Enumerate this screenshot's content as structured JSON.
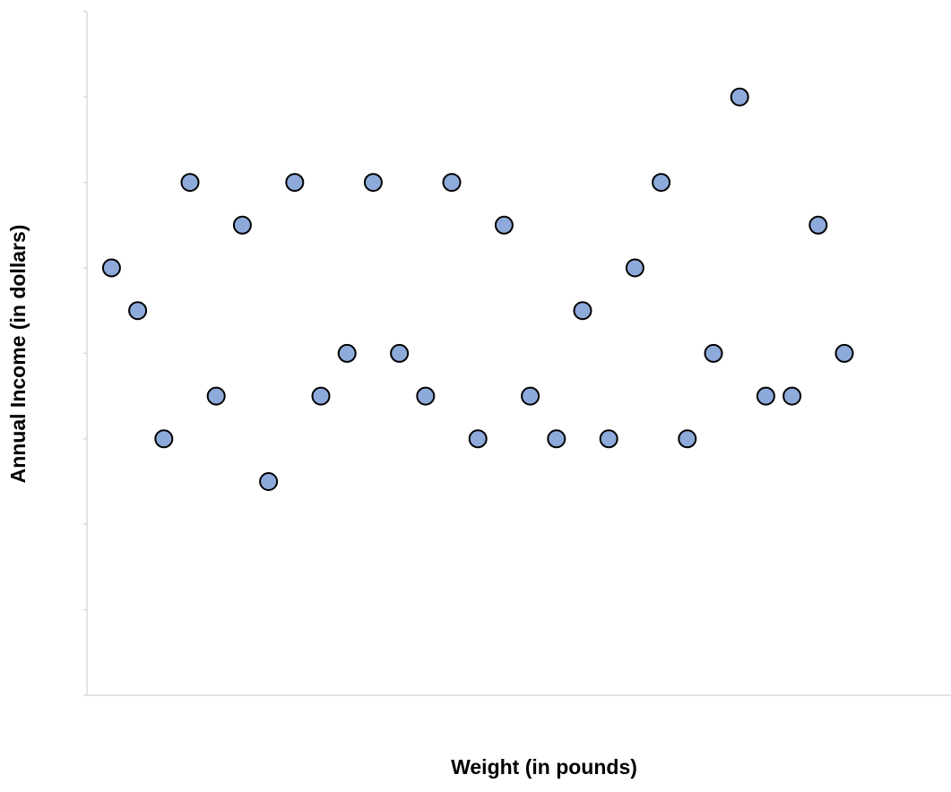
{
  "chart_data": {
    "type": "scatter",
    "title": "",
    "xlabel": "Weight (in pounds)",
    "ylabel": "Annual Income (in dollars)",
    "x_tick_labels_shown": false,
    "y_tick_labels_shown": false,
    "grid": false,
    "legend": false,
    "xlim": [
      0,
      33
    ],
    "ylim": [
      0,
      8
    ],
    "marker_color": "#8eaadb",
    "marker_edge_color": "#000000",
    "series": [
      {
        "points": [
          {
            "x": 1,
            "y": 5
          },
          {
            "x": 2,
            "y": 4.5
          },
          {
            "x": 3,
            "y": 3
          },
          {
            "x": 4,
            "y": 6
          },
          {
            "x": 5,
            "y": 3.5
          },
          {
            "x": 6,
            "y": 5.5
          },
          {
            "x": 7,
            "y": 2.5
          },
          {
            "x": 8,
            "y": 6
          },
          {
            "x": 9,
            "y": 3.5
          },
          {
            "x": 10,
            "y": 4
          },
          {
            "x": 11,
            "y": 6
          },
          {
            "x": 12,
            "y": 4
          },
          {
            "x": 13,
            "y": 3.5
          },
          {
            "x": 14,
            "y": 6
          },
          {
            "x": 15,
            "y": 3
          },
          {
            "x": 16,
            "y": 5.5
          },
          {
            "x": 17,
            "y": 3.5
          },
          {
            "x": 18,
            "y": 3
          },
          {
            "x": 19,
            "y": 4.5
          },
          {
            "x": 20,
            "y": 3
          },
          {
            "x": 21,
            "y": 5
          },
          {
            "x": 22,
            "y": 6
          },
          {
            "x": 23,
            "y": 3
          },
          {
            "x": 24,
            "y": 4
          },
          {
            "x": 25,
            "y": 7
          },
          {
            "x": 26,
            "y": 3.5
          },
          {
            "x": 27,
            "y": 3.5
          },
          {
            "x": 28,
            "y": 5.5
          },
          {
            "x": 29,
            "y": 4
          }
        ]
      }
    ]
  }
}
